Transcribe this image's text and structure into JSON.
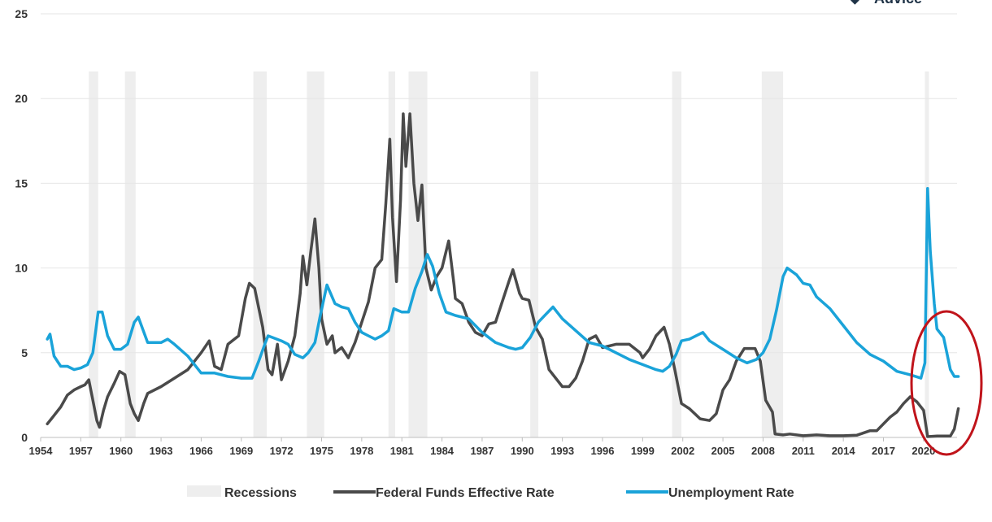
{
  "brand_partial": "Advice",
  "chart_data": {
    "type": "line",
    "ylim": [
      0,
      25
    ],
    "yticks": [
      0,
      5,
      10,
      15,
      20,
      25
    ],
    "x_range": [
      1954,
      2022.5
    ],
    "x_tick_labels": [
      "1954",
      "1957",
      "1960",
      "1963",
      "1966",
      "1969",
      "1972",
      "1975",
      "1978",
      "1981",
      "1984",
      "1987",
      "1990",
      "1993",
      "1996",
      "1999",
      "2002",
      "2005",
      "2008",
      "2011",
      "2014",
      "2017",
      "2020"
    ],
    "grid": true,
    "legend_position": "bottom",
    "recessions": [
      [
        1957.6,
        1958.3
      ],
      [
        1960.3,
        1961.1
      ],
      [
        1969.9,
        1970.9
      ],
      [
        1973.9,
        1975.2
      ],
      [
        1980.0,
        1980.5
      ],
      [
        1981.5,
        1982.9
      ],
      [
        1990.6,
        1991.2
      ],
      [
        2001.2,
        2001.9
      ],
      [
        2007.9,
        2009.5
      ],
      [
        2020.1,
        2020.4
      ]
    ],
    "series": [
      {
        "name": "Recessions",
        "color": "#eeeeee"
      },
      {
        "name": "Federal Funds Effective Rate",
        "color": "#4a4a4a",
        "points": [
          [
            1954.5,
            0.8
          ],
          [
            1954.8,
            1.1
          ],
          [
            1955,
            1.3
          ],
          [
            1955.5,
            1.8
          ],
          [
            1956,
            2.5
          ],
          [
            1956.5,
            2.8
          ],
          [
            1957,
            3.0
          ],
          [
            1957.3,
            3.1
          ],
          [
            1957.6,
            3.4
          ],
          [
            1957.9,
            2.2
          ],
          [
            1958.2,
            1.0
          ],
          [
            1958.4,
            0.6
          ],
          [
            1958.7,
            1.6
          ],
          [
            1959,
            2.4
          ],
          [
            1959.5,
            3.2
          ],
          [
            1959.9,
            3.9
          ],
          [
            1960.3,
            3.7
          ],
          [
            1960.7,
            2.0
          ],
          [
            1961.0,
            1.4
          ],
          [
            1961.3,
            1.0
          ],
          [
            1961.7,
            2.0
          ],
          [
            1962,
            2.6
          ],
          [
            1963,
            3.0
          ],
          [
            1964,
            3.5
          ],
          [
            1965,
            4.0
          ],
          [
            1966,
            5.0
          ],
          [
            1966.6,
            5.7
          ],
          [
            1967,
            4.2
          ],
          [
            1967.5,
            4.0
          ],
          [
            1968,
            5.5
          ],
          [
            1968.8,
            6.0
          ],
          [
            1969.3,
            8.2
          ],
          [
            1969.6,
            9.1
          ],
          [
            1970.0,
            8.8
          ],
          [
            1970.6,
            6.5
          ],
          [
            1971,
            4.0
          ],
          [
            1971.3,
            3.7
          ],
          [
            1971.7,
            5.5
          ],
          [
            1972,
            3.4
          ],
          [
            1972.5,
            4.5
          ],
          [
            1973,
            6.0
          ],
          [
            1973.4,
            8.5
          ],
          [
            1973.6,
            10.7
          ],
          [
            1973.9,
            9.0
          ],
          [
            1974.2,
            11.0
          ],
          [
            1974.5,
            12.9
          ],
          [
            1974.8,
            10.0
          ],
          [
            1975.0,
            7.0
          ],
          [
            1975.4,
            5.5
          ],
          [
            1975.8,
            6.0
          ],
          [
            1976,
            5.0
          ],
          [
            1976.5,
            5.3
          ],
          [
            1977,
            4.7
          ],
          [
            1977.5,
            5.6
          ],
          [
            1978,
            6.8
          ],
          [
            1978.5,
            8.0
          ],
          [
            1979,
            10.0
          ],
          [
            1979.5,
            10.5
          ],
          [
            1979.8,
            13.8
          ],
          [
            1980.1,
            17.6
          ],
          [
            1980.3,
            13.0
          ],
          [
            1980.6,
            9.2
          ],
          [
            1980.9,
            14.0
          ],
          [
            1981.1,
            19.1
          ],
          [
            1981.3,
            16.0
          ],
          [
            1981.6,
            19.1
          ],
          [
            1981.9,
            15.0
          ],
          [
            1982.2,
            12.8
          ],
          [
            1982.5,
            14.9
          ],
          [
            1982.8,
            10.0
          ],
          [
            1983.2,
            8.7
          ],
          [
            1983.6,
            9.5
          ],
          [
            1984,
            10.0
          ],
          [
            1984.5,
            11.6
          ],
          [
            1984.9,
            9.0
          ],
          [
            1985,
            8.2
          ],
          [
            1985.5,
            7.9
          ],
          [
            1986,
            6.8
          ],
          [
            1986.5,
            6.2
          ],
          [
            1987,
            6.0
          ],
          [
            1987.5,
            6.7
          ],
          [
            1988,
            6.8
          ],
          [
            1988.5,
            8.0
          ],
          [
            1989,
            9.2
          ],
          [
            1989.3,
            9.9
          ],
          [
            1989.8,
            8.5
          ],
          [
            1990,
            8.2
          ],
          [
            1990.5,
            8.1
          ],
          [
            1991,
            6.5
          ],
          [
            1991.5,
            5.8
          ],
          [
            1992,
            4.0
          ],
          [
            1993,
            3.0
          ],
          [
            1993.5,
            3.0
          ],
          [
            1994,
            3.5
          ],
          [
            1994.5,
            4.5
          ],
          [
            1995,
            5.8
          ],
          [
            1995.5,
            6.0
          ],
          [
            1996,
            5.3
          ],
          [
            1997,
            5.5
          ],
          [
            1998,
            5.5
          ],
          [
            1998.8,
            5.0
          ],
          [
            1999,
            4.7
          ],
          [
            1999.5,
            5.2
          ],
          [
            2000,
            6.0
          ],
          [
            2000.6,
            6.5
          ],
          [
            2001,
            5.5
          ],
          [
            2001.4,
            4.0
          ],
          [
            2001.9,
            2.0
          ],
          [
            2002.5,
            1.7
          ],
          [
            2003.3,
            1.1
          ],
          [
            2004,
            1.0
          ],
          [
            2004.5,
            1.4
          ],
          [
            2005,
            2.8
          ],
          [
            2005.5,
            3.4
          ],
          [
            2006,
            4.5
          ],
          [
            2006.6,
            5.25
          ],
          [
            2007.4,
            5.25
          ],
          [
            2007.8,
            4.5
          ],
          [
            2008.2,
            2.2
          ],
          [
            2008.7,
            1.5
          ],
          [
            2008.9,
            0.2
          ],
          [
            2009.5,
            0.15
          ],
          [
            2010,
            0.2
          ],
          [
            2011,
            0.1
          ],
          [
            2012,
            0.15
          ],
          [
            2013,
            0.1
          ],
          [
            2014,
            0.1
          ],
          [
            2015,
            0.13
          ],
          [
            2016,
            0.4
          ],
          [
            2016.5,
            0.4
          ],
          [
            2017,
            0.8
          ],
          [
            2017.5,
            1.2
          ],
          [
            2018,
            1.5
          ],
          [
            2018.5,
            2.0
          ],
          [
            2019,
            2.4
          ],
          [
            2019.5,
            2.1
          ],
          [
            2020.0,
            1.6
          ],
          [
            2020.3,
            0.05
          ],
          [
            2021,
            0.08
          ],
          [
            2022,
            0.08
          ],
          [
            2022.3,
            0.5
          ],
          [
            2022.6,
            1.7
          ]
        ]
      },
      {
        "name": "Unemployment Rate",
        "color": "#1aa3d9",
        "points": [
          [
            1954.5,
            5.8
          ],
          [
            1954.7,
            6.1
          ],
          [
            1955,
            4.8
          ],
          [
            1955.5,
            4.2
          ],
          [
            1956,
            4.2
          ],
          [
            1956.5,
            4.0
          ],
          [
            1957,
            4.1
          ],
          [
            1957.5,
            4.3
          ],
          [
            1957.9,
            5.0
          ],
          [
            1958.3,
            7.4
          ],
          [
            1958.6,
            7.4
          ],
          [
            1959,
            6.0
          ],
          [
            1959.5,
            5.2
          ],
          [
            1960,
            5.2
          ],
          [
            1960.5,
            5.5
          ],
          [
            1961,
            6.8
          ],
          [
            1961.3,
            7.1
          ],
          [
            1962,
            5.6
          ],
          [
            1963,
            5.6
          ],
          [
            1963.5,
            5.8
          ],
          [
            1964,
            5.5
          ],
          [
            1965,
            4.8
          ],
          [
            1965.5,
            4.3
          ],
          [
            1966,
            3.8
          ],
          [
            1967,
            3.8
          ],
          [
            1968,
            3.6
          ],
          [
            1969,
            3.5
          ],
          [
            1969.8,
            3.5
          ],
          [
            1970.3,
            4.5
          ],
          [
            1970.8,
            5.6
          ],
          [
            1971,
            6.0
          ],
          [
            1972,
            5.7
          ],
          [
            1972.5,
            5.5
          ],
          [
            1973,
            4.9
          ],
          [
            1973.6,
            4.7
          ],
          [
            1974,
            5.0
          ],
          [
            1974.5,
            5.6
          ],
          [
            1974.9,
            7.2
          ],
          [
            1975.4,
            9.0
          ],
          [
            1976,
            7.9
          ],
          [
            1976.5,
            7.7
          ],
          [
            1977,
            7.6
          ],
          [
            1977.5,
            6.8
          ],
          [
            1978,
            6.2
          ],
          [
            1978.5,
            6.0
          ],
          [
            1979,
            5.8
          ],
          [
            1979.5,
            6.0
          ],
          [
            1980.0,
            6.3
          ],
          [
            1980.4,
            7.6
          ],
          [
            1981,
            7.4
          ],
          [
            1981.5,
            7.4
          ],
          [
            1982,
            8.8
          ],
          [
            1982.5,
            9.8
          ],
          [
            1982.9,
            10.8
          ],
          [
            1983.3,
            10.1
          ],
          [
            1983.8,
            8.5
          ],
          [
            1984.3,
            7.4
          ],
          [
            1985,
            7.2
          ],
          [
            1986,
            7.0
          ],
          [
            1987,
            6.2
          ],
          [
            1988,
            5.6
          ],
          [
            1989,
            5.3
          ],
          [
            1989.5,
            5.2
          ],
          [
            1990,
            5.3
          ],
          [
            1990.6,
            5.9
          ],
          [
            1991.2,
            6.8
          ],
          [
            1991.8,
            7.3
          ],
          [
            1992.3,
            7.7
          ],
          [
            1993,
            7.0
          ],
          [
            1994,
            6.3
          ],
          [
            1995,
            5.6
          ],
          [
            1996,
            5.4
          ],
          [
            1997,
            5.0
          ],
          [
            1998,
            4.6
          ],
          [
            1999,
            4.3
          ],
          [
            2000,
            4.0
          ],
          [
            2000.5,
            3.9
          ],
          [
            2001,
            4.2
          ],
          [
            2001.5,
            4.9
          ],
          [
            2001.9,
            5.7
          ],
          [
            2002.5,
            5.8
          ],
          [
            2003.5,
            6.2
          ],
          [
            2004,
            5.7
          ],
          [
            2005,
            5.2
          ],
          [
            2006,
            4.7
          ],
          [
            2006.8,
            4.4
          ],
          [
            2007.5,
            4.6
          ],
          [
            2008,
            5.0
          ],
          [
            2008.5,
            5.8
          ],
          [
            2009,
            7.5
          ],
          [
            2009.5,
            9.5
          ],
          [
            2009.8,
            10.0
          ],
          [
            2010.5,
            9.6
          ],
          [
            2011,
            9.1
          ],
          [
            2011.5,
            9.0
          ],
          [
            2012,
            8.3
          ],
          [
            2013,
            7.6
          ],
          [
            2014,
            6.6
          ],
          [
            2015,
            5.6
          ],
          [
            2016,
            4.9
          ],
          [
            2017,
            4.5
          ],
          [
            2018,
            3.9
          ],
          [
            2019,
            3.7
          ],
          [
            2019.8,
            3.5
          ],
          [
            2020.1,
            4.4
          ],
          [
            2020.3,
            14.7
          ],
          [
            2020.5,
            11.0
          ],
          [
            2020.8,
            7.9
          ],
          [
            2021,
            6.4
          ],
          [
            2021.5,
            5.9
          ],
          [
            2022,
            4.0
          ],
          [
            2022.3,
            3.6
          ],
          [
            2022.6,
            3.6
          ]
        ]
      }
    ]
  }
}
